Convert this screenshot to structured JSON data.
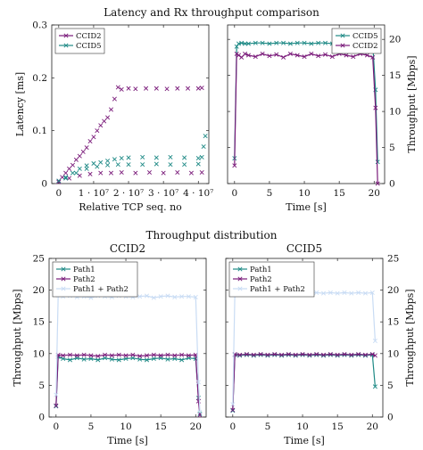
{
  "figure": {
    "top_title": "Latency and Rx throughput comparison",
    "bottom_title": "Throughput distribution"
  },
  "colors": {
    "ccid2": "#7a1b7a",
    "ccid5": "#1f8a86",
    "path1": "#1f8a86",
    "path2": "#7a1b7a",
    "sum": "#c9dcf4",
    "frame": "#222222"
  },
  "chart_data": [
    {
      "type": "scatter",
      "title": "",
      "xlabel": "Relative TCP seq. no",
      "ylabel": "Latency [ms]",
      "xlim": [
        -2000000.0,
        43000000.0
      ],
      "ylim": [
        0,
        0.3
      ],
      "x_ticks": [
        0,
        10000000.0,
        20000000.0,
        30000000.0,
        40000000.0
      ],
      "x_tick_labels": [
        "0",
        "1 · 10⁷",
        "2 · 10⁷",
        "3 · 10⁷",
        "4 · 10⁷"
      ],
      "y_ticks": [
        0,
        0.1,
        0.2,
        0.3
      ],
      "y_tick_labels": [
        "0",
        "0.1",
        "0.2",
        "0.3"
      ],
      "legend_position": "top-left",
      "series": [
        {
          "name": "CCID2",
          "color_key": "ccid2",
          "marker": "x",
          "x": [
            0,
            1000000.0,
            2000000.0,
            3000000.0,
            4000000.0,
            5000000.0,
            6000000.0,
            7000000.0,
            8000000.0,
            9000000.0,
            10000000.0,
            11000000.0,
            12000000.0,
            13000000.0,
            14000000.0,
            15000000.0,
            16000000.0,
            17000000.0,
            18000000.0,
            20000000.0,
            22000000.0,
            25000000.0,
            28000000.0,
            31000000.0,
            34000000.0,
            37000000.0,
            40000000.0,
            41000000.0
          ],
          "y": [
            0.005,
            0.012,
            0.02,
            0.028,
            0.035,
            0.045,
            0.052,
            0.06,
            0.068,
            0.08,
            0.088,
            0.1,
            0.11,
            0.118,
            0.125,
            0.14,
            0.16,
            0.182,
            0.178,
            0.18,
            0.179,
            0.18,
            0.18,
            0.179,
            0.18,
            0.18,
            0.18,
            0.181
          ]
        },
        {
          "name": "",
          "color_key": "ccid2",
          "marker": "x",
          "x": [
            0,
            3000000.0,
            6000000.0,
            9000000.0,
            12000000.0,
            15000000.0,
            18000000.0,
            22000000.0,
            26000000.0,
            30000000.0,
            34000000.0,
            38000000.0,
            41000000.0
          ],
          "y": [
            0.003,
            0.01,
            0.015,
            0.018,
            0.02,
            0.02,
            0.021,
            0.02,
            0.021,
            0.02,
            0.021,
            0.02,
            0.021
          ]
        },
        {
          "name": "CCID5",
          "color_key": "ccid5",
          "marker": "x",
          "x": [
            0,
            2000000.0,
            4000000.0,
            6000000.0,
            8000000.0,
            10000000.0,
            12000000.0,
            14000000.0,
            16000000.0,
            18000000.0,
            20000000.0,
            24000000.0,
            28000000.0,
            32000000.0,
            36000000.0,
            40000000.0,
            41000000.0,
            41500000.0,
            42000000.0
          ],
          "y": [
            0.005,
            0.012,
            0.02,
            0.028,
            0.034,
            0.038,
            0.04,
            0.043,
            0.046,
            0.048,
            0.049,
            0.05,
            0.049,
            0.05,
            0.049,
            0.048,
            0.05,
            0.07,
            0.09
          ]
        },
        {
          "name": "",
          "color_key": "ccid5",
          "marker": "x",
          "x": [
            2000000.0,
            5000000.0,
            8000000.0,
            11000000.0,
            14000000.0,
            17000000.0,
            20000000.0,
            24000000.0,
            28000000.0,
            32000000.0,
            36000000.0,
            40000000.0
          ],
          "y": [
            0.01,
            0.02,
            0.028,
            0.032,
            0.035,
            0.036,
            0.036,
            0.036,
            0.037,
            0.036,
            0.036,
            0.037
          ]
        }
      ]
    },
    {
      "type": "line",
      "title": "",
      "xlabel": "Time [s]",
      "ylabel": "Throughput [Mbps]",
      "xlim": [
        -1,
        21.5
      ],
      "ylim": [
        0,
        22
      ],
      "x_ticks": [
        0,
        5,
        10,
        15,
        20
      ],
      "y_ticks": [
        0,
        5,
        10,
        15,
        20
      ],
      "y_axis_side": "right",
      "legend_position": "top-right",
      "series": [
        {
          "name": "CCID5",
          "color_key": "ccid5",
          "marker": "x",
          "x": [
            0,
            0.3,
            0.6,
            1,
            1.5,
            2,
            3,
            4,
            5,
            6,
            7,
            8,
            9,
            10,
            11,
            12,
            13,
            14,
            15,
            16,
            17,
            18,
            19,
            19.8,
            20.2,
            20.5
          ],
          "y": [
            3.5,
            19.0,
            19.4,
            19.5,
            19.4,
            19.4,
            19.5,
            19.5,
            19.4,
            19.5,
            19.5,
            19.4,
            19.5,
            19.5,
            19.4,
            19.5,
            19.5,
            19.4,
            19.5,
            19.5,
            19.4,
            19.5,
            19.5,
            19.4,
            13.0,
            3.0
          ]
        },
        {
          "name": "CCID2",
          "color_key": "ccid2",
          "marker": "x",
          "x": [
            0,
            0.3,
            0.6,
            1,
            1.5,
            2,
            3,
            4,
            5,
            6,
            7,
            8,
            9,
            10,
            11,
            12,
            13,
            14,
            15,
            16,
            17,
            18,
            19,
            19.8,
            20.2,
            20.5
          ],
          "y": [
            2.5,
            18.0,
            17.8,
            17.5,
            18.0,
            17.8,
            17.6,
            18.0,
            17.7,
            17.9,
            17.5,
            18.0,
            17.8,
            17.6,
            18.0,
            17.7,
            17.9,
            17.6,
            18.0,
            17.8,
            17.6,
            18.0,
            17.8,
            17.5,
            10.5,
            0.0
          ]
        }
      ]
    },
    {
      "type": "line",
      "title": "CCID2",
      "xlabel": "Time [s]",
      "ylabel": "Throughput [Mbps]",
      "xlim": [
        -1,
        21.5
      ],
      "ylim": [
        0,
        25
      ],
      "x_ticks": [
        0,
        5,
        10,
        15,
        20
      ],
      "y_ticks": [
        0,
        5,
        10,
        15,
        20,
        25
      ],
      "legend_position": "top-left",
      "series": [
        {
          "name": "Path1",
          "color_key": "path1",
          "marker": "x",
          "x": [
            0,
            0.3,
            1,
            2,
            3,
            4,
            5,
            6,
            7,
            8,
            9,
            10,
            11,
            12,
            13,
            14,
            15,
            16,
            17,
            18,
            19,
            20,
            20.4,
            20.6
          ],
          "y": [
            1.7,
            9.5,
            9.2,
            9.0,
            9.3,
            9.1,
            9.2,
            9.0,
            9.3,
            9.1,
            9.0,
            9.2,
            9.3,
            9.1,
            9.0,
            9.2,
            9.3,
            9.1,
            9.2,
            9.0,
            9.3,
            9.2,
            3.0,
            0.5
          ]
        },
        {
          "name": "Path2",
          "color_key": "path2",
          "marker": "x",
          "x": [
            0,
            0.3,
            1,
            2,
            3,
            4,
            5,
            6,
            7,
            8,
            9,
            10,
            11,
            12,
            13,
            14,
            15,
            16,
            17,
            18,
            19,
            20,
            20.4,
            20.6
          ],
          "y": [
            1.8,
            9.8,
            9.7,
            9.8,
            9.7,
            9.8,
            9.7,
            9.6,
            9.8,
            9.7,
            9.8,
            9.7,
            9.8,
            9.6,
            9.7,
            9.8,
            9.7,
            9.8,
            9.7,
            9.8,
            9.7,
            9.8,
            2.5,
            0.3
          ]
        },
        {
          "name": "Path1 + Path2",
          "color_key": "sum",
          "marker": "x",
          "x": [
            0,
            0.3,
            1,
            2,
            3,
            4,
            5,
            6,
            7,
            8,
            9,
            10,
            11,
            12,
            13,
            14,
            15,
            16,
            17,
            18,
            19,
            20,
            20.4,
            20.6
          ],
          "y": [
            3.5,
            19.2,
            19.0,
            19.1,
            18.9,
            19.0,
            18.8,
            19.1,
            19.0,
            18.9,
            19.1,
            19.0,
            18.9,
            19.0,
            19.1,
            18.8,
            19.0,
            19.1,
            18.9,
            19.0,
            19.0,
            18.9,
            5.5,
            0.8
          ]
        }
      ]
    },
    {
      "type": "line",
      "title": "CCID5",
      "xlabel": "Time [s]",
      "ylabel": "Throughput [Mbps]",
      "xlim": [
        -1,
        21.5
      ],
      "ylim": [
        0,
        25
      ],
      "x_ticks": [
        0,
        5,
        10,
        15,
        20
      ],
      "y_ticks": [
        0,
        5,
        10,
        15,
        20,
        25
      ],
      "y_axis_side": "right",
      "legend_position": "top-left",
      "series": [
        {
          "name": "Path1",
          "color_key": "path1",
          "marker": "x",
          "x": [
            0,
            0.3,
            1,
            2,
            3,
            4,
            5,
            6,
            7,
            8,
            9,
            10,
            11,
            12,
            13,
            14,
            15,
            16,
            17,
            18,
            19,
            20,
            20.4
          ],
          "y": [
            1.0,
            9.8,
            9.7,
            9.8,
            9.7,
            9.8,
            9.7,
            9.8,
            9.7,
            9.8,
            9.7,
            9.8,
            9.7,
            9.8,
            9.7,
            9.8,
            9.7,
            9.8,
            9.7,
            9.8,
            9.7,
            9.8,
            4.8
          ]
        },
        {
          "name": "Path2",
          "color_key": "path2",
          "marker": "x",
          "x": [
            0,
            0.3,
            1,
            2,
            3,
            4,
            5,
            6,
            7,
            8,
            9,
            10,
            11,
            12,
            13,
            14,
            15,
            16,
            17,
            18,
            19,
            20,
            20.4
          ],
          "y": [
            1.1,
            9.9,
            9.8,
            9.9,
            9.8,
            9.9,
            9.8,
            9.9,
            9.8,
            9.9,
            9.8,
            9.9,
            9.8,
            9.9,
            9.8,
            9.9,
            9.8,
            9.9,
            9.8,
            9.9,
            9.8,
            9.9,
            9.7
          ]
        },
        {
          "name": "Path1 + Path2",
          "color_key": "sum",
          "marker": "x",
          "x": [
            0,
            0.3,
            1,
            2,
            3,
            4,
            5,
            6,
            7,
            8,
            9,
            10,
            11,
            12,
            13,
            14,
            15,
            16,
            17,
            18,
            19,
            20,
            20.4
          ],
          "y": [
            2.0,
            19.6,
            19.5,
            19.6,
            19.5,
            19.6,
            19.5,
            19.6,
            19.5,
            19.6,
            19.5,
            19.6,
            19.5,
            19.6,
            19.5,
            19.6,
            19.5,
            19.6,
            19.5,
            19.6,
            19.5,
            19.6,
            12.0
          ]
        }
      ]
    }
  ]
}
